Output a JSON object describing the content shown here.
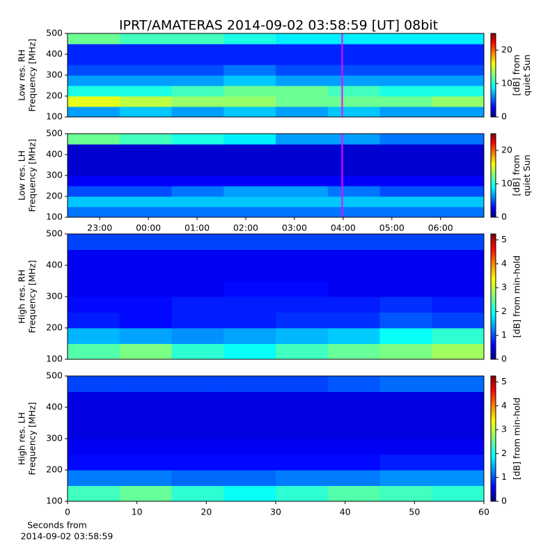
{
  "chart_data": [
    {
      "type": "heatmap",
      "title": "IPRT/AMATERAS 2014-09-02 03:58:59 [UT]   08bit",
      "ylabel": [
        "Low res. RH",
        "Frequency [MHz]"
      ],
      "colorbar_label": [
        "[dB] from",
        "quiet Sun"
      ],
      "colormap": "jet",
      "clim": [
        0,
        25
      ],
      "cticks": [
        0,
        10,
        20
      ],
      "xlim": [
        22.34,
        30.89
      ],
      "ylim": [
        100,
        500
      ],
      "yticks": [
        100,
        200,
        300,
        400,
        500
      ],
      "marker": {
        "x": 27.98,
        "color": "#ff00ff"
      },
      "y_edges": [
        100,
        150,
        200,
        250,
        300,
        350,
        400,
        450,
        500
      ],
      "z": [
        [
          7,
          8,
          7,
          8,
          7,
          8,
          7,
          7
        ],
        [
          15,
          14,
          13,
          13,
          12,
          12,
          12,
          13
        ],
        [
          10,
          10,
          11,
          12,
          12,
          11,
          10,
          10
        ],
        [
          7,
          7,
          7,
          8,
          7,
          7,
          7,
          7
        ],
        [
          5,
          5,
          5,
          6,
          5,
          5,
          5,
          5
        ],
        [
          4,
          4,
          4,
          4,
          4,
          4,
          4,
          4
        ],
        [
          4,
          4,
          4,
          4,
          4,
          4,
          4,
          4
        ],
        [
          12,
          11,
          11,
          10,
          9,
          9,
          9,
          9
        ]
      ]
    },
    {
      "type": "heatmap",
      "ylabel": [
        "Low res. LH",
        "Frequency [MHz]"
      ],
      "colorbar_label": [
        "[dB] from",
        "quiet Sun"
      ],
      "colormap": "jet",
      "clim": [
        0,
        25
      ],
      "cticks": [
        0,
        10,
        20
      ],
      "xlim": [
        22.34,
        30.89
      ],
      "ylim": [
        100,
        500
      ],
      "yticks": [
        100,
        200,
        300,
        400,
        500
      ],
      "xticks": [
        {
          "value": 23,
          "label": "23:00"
        },
        {
          "value": 24,
          "label": "00:00"
        },
        {
          "value": 25,
          "label": "01:00"
        },
        {
          "value": 26,
          "label": "02:00"
        },
        {
          "value": 27,
          "label": "03:00"
        },
        {
          "value": 28,
          "label": "04:00"
        },
        {
          "value": 29,
          "label": "05:00"
        },
        {
          "value": 30,
          "label": "06:00"
        }
      ],
      "marker": {
        "x": 27.98,
        "color": "#ff00ff"
      },
      "y_edges": [
        100,
        150,
        200,
        250,
        300,
        350,
        400,
        450,
        500
      ],
      "z": [
        [
          6,
          6,
          6,
          6,
          6,
          6,
          6,
          6
        ],
        [
          8,
          8,
          8,
          8,
          8,
          8,
          8,
          8
        ],
        [
          5,
          5,
          6,
          7,
          7,
          6,
          5,
          5
        ],
        [
          3,
          3,
          3,
          3,
          3,
          3,
          3,
          3
        ],
        [
          2,
          2,
          2,
          2,
          2,
          2,
          2,
          2
        ],
        [
          2,
          2,
          2,
          2,
          2,
          2,
          2,
          2
        ],
        [
          2,
          2,
          2,
          2,
          2,
          2,
          2,
          2
        ],
        [
          12,
          11,
          10,
          9,
          7,
          7,
          6,
          6
        ]
      ]
    },
    {
      "type": "heatmap",
      "ylabel": [
        "High res. RH",
        "Frequency [MHz]"
      ],
      "colorbar_label": [
        "[dB] from min-hold"
      ],
      "colormap": "jet",
      "clim": [
        0,
        5.25
      ],
      "cticks": [
        0,
        1,
        2,
        3,
        4,
        5
      ],
      "xlim": [
        0,
        60
      ],
      "ylim": [
        100,
        500
      ],
      "yticks": [
        100,
        200,
        300,
        400,
        500
      ],
      "y_edges": [
        100,
        150,
        200,
        250,
        300,
        350,
        400,
        450,
        500
      ],
      "z": [
        [
          2.4,
          2.6,
          2.2,
          2.0,
          2.3,
          2.5,
          2.6,
          2.8
        ],
        [
          1.6,
          1.5,
          1.4,
          1.5,
          1.6,
          1.7,
          2.0,
          2.2
        ],
        [
          0.8,
          0.7,
          0.8,
          0.8,
          0.9,
          0.9,
          1.1,
          1.0
        ],
        [
          0.7,
          0.7,
          0.8,
          0.8,
          0.8,
          0.8,
          0.9,
          0.8
        ],
        [
          0.6,
          0.6,
          0.6,
          0.7,
          0.7,
          0.6,
          0.6,
          0.6
        ],
        [
          0.6,
          0.6,
          0.6,
          0.6,
          0.6,
          0.6,
          0.6,
          0.6
        ],
        [
          0.6,
          0.6,
          0.6,
          0.6,
          0.6,
          0.6,
          0.6,
          0.6
        ],
        [
          1.0,
          1.0,
          1.0,
          1.0,
          1.0,
          1.0,
          1.0,
          1.0
        ]
      ]
    },
    {
      "type": "heatmap",
      "ylabel": [
        "High res. LH",
        "Frequency [MHz]"
      ],
      "colorbar_label": [
        "[dB] from min-hold"
      ],
      "colormap": "jet",
      "clim": [
        0,
        5.25
      ],
      "cticks": [
        0,
        1,
        2,
        3,
        4,
        5
      ],
      "xlim": [
        0,
        60
      ],
      "ylim": [
        100,
        500
      ],
      "yticks": [
        100,
        200,
        300,
        400,
        500
      ],
      "xticks": [
        0,
        10,
        20,
        30,
        40,
        50,
        60
      ],
      "xlabel": [
        "Seconds from",
        "2014-09-02 03:58:59"
      ],
      "y_edges": [
        100,
        150,
        200,
        250,
        300,
        350,
        400,
        450,
        500
      ],
      "z": [
        [
          2.3,
          2.5,
          2.2,
          2.0,
          2.2,
          2.4,
          2.3,
          2.2
        ],
        [
          1.3,
          1.3,
          1.2,
          1.2,
          1.3,
          1.3,
          1.4,
          1.4
        ],
        [
          0.7,
          0.7,
          0.7,
          0.7,
          0.7,
          0.7,
          0.8,
          0.8
        ],
        [
          0.6,
          0.6,
          0.6,
          0.6,
          0.6,
          0.6,
          0.6,
          0.6
        ],
        [
          0.5,
          0.5,
          0.5,
          0.5,
          0.5,
          0.5,
          0.5,
          0.5
        ],
        [
          0.5,
          0.5,
          0.5,
          0.5,
          0.5,
          0.5,
          0.5,
          0.5
        ],
        [
          0.5,
          0.5,
          0.5,
          0.5,
          0.5,
          0.5,
          0.5,
          0.5
        ],
        [
          1.0,
          1.0,
          1.0,
          1.0,
          1.0,
          1.1,
          1.2,
          1.2
        ]
      ]
    }
  ]
}
